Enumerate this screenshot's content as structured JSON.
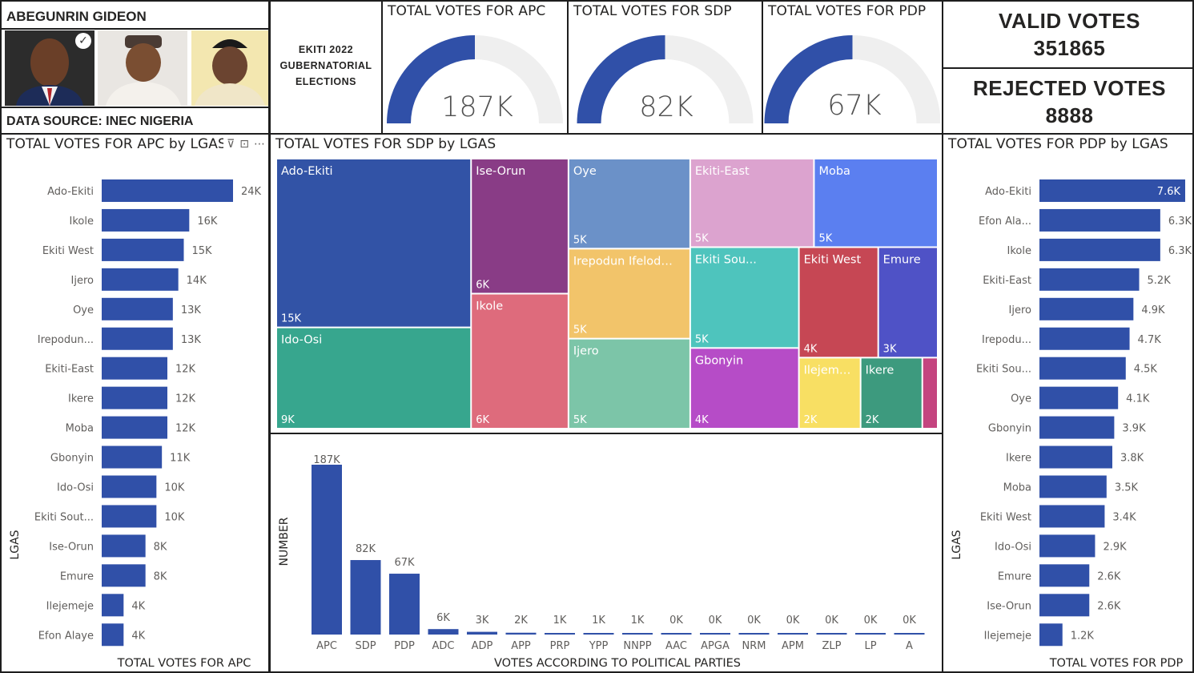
{
  "candidate": {
    "name": "ABEGUNRIN GIDEON",
    "source": "DATA SOURCE: INEC NIGERIA",
    "check": "✓"
  },
  "election_title": [
    "EKITI 2022",
    "GUBERNATORIAL",
    "ELECTIONS"
  ],
  "gauges": [
    {
      "title": "TOTAL VOTES FOR APC",
      "value_label": "187K",
      "value": 187,
      "max": 374
    },
    {
      "title": "TOTAL VOTES FOR SDP",
      "value_label": "82K",
      "value": 82,
      "max": 164
    },
    {
      "title": "TOTAL VOTES FOR PDP",
      "value_label": "67K",
      "value": 67,
      "max": 134
    }
  ],
  "valid_votes": {
    "label": "VALID VOTES",
    "value": "351865"
  },
  "rejected_votes": {
    "label": "REJECTED VOTES",
    "value": "8888"
  },
  "colors": {
    "bar": "#3050a8",
    "gauge_track": "#efefef",
    "text": "#252423",
    "label": "#605e5c"
  },
  "header_icons": [
    "filter-icon",
    "focus-mode-icon",
    "more-options-icon"
  ],
  "header_icon_glyphs": {
    "filter": "⊽",
    "focus": "⊡",
    "more": "⋯"
  },
  "chart_data": [
    {
      "type": "bar",
      "orientation": "horizontal",
      "title": "TOTAL VOTES FOR APC by LGAS",
      "ylabel": "LGAS",
      "xlabel": "TOTAL VOTES FOR APC",
      "categories": [
        "Ado-Ekiti",
        "Ikole",
        "Ekiti West",
        "Ijero",
        "Oye",
        "Irepodun...",
        "Ekiti-East",
        "Ikere",
        "Moba",
        "Gbonyin",
        "Ido-Osi",
        "Ekiti Sout...",
        "Ise-Orun",
        "Emure",
        "Ilejemeje",
        "Efon Alaye"
      ],
      "values": [
        24000,
        16000,
        15000,
        14000,
        13000,
        13000,
        12000,
        12000,
        12000,
        11000,
        10000,
        10000,
        8000,
        8000,
        4000,
        4000
      ],
      "labels": [
        "24K",
        "16K",
        "15K",
        "14K",
        "13K",
        "13K",
        "12K",
        "12K",
        "12K",
        "11K",
        "10K",
        "10K",
        "8K",
        "8K",
        "4K",
        "4K"
      ]
    },
    {
      "type": "treemap",
      "title": "TOTAL VOTES FOR SDP by LGAS",
      "items": [
        {
          "name": "Ado-Ekiti",
          "label": "15K",
          "value": 15000,
          "color": "#3253a6"
        },
        {
          "name": "Ido-Osi",
          "label": "9K",
          "value": 9000,
          "color": "#37a68e"
        },
        {
          "name": "Ise-Orun",
          "label": "6K",
          "value": 6000,
          "color": "#893c86"
        },
        {
          "name": "Ikole",
          "label": "6K",
          "value": 6000,
          "color": "#de6b7c"
        },
        {
          "name": "Oye",
          "label": "5K",
          "value": 5000,
          "color": "#6b91c8"
        },
        {
          "name": "Irepodun Ifelodun",
          "label": "5K",
          "value": 5000,
          "color": "#f2c46a"
        },
        {
          "name": "Ijero",
          "label": "5K",
          "value": 5000,
          "color": "#7cc5a8"
        },
        {
          "name": "Ekiti-East",
          "label": "5K",
          "value": 5000,
          "color": "#dca3cf"
        },
        {
          "name": "Moba",
          "label": "5K",
          "value": 5000,
          "color": "#5b7ff0"
        },
        {
          "name": "Ekiti Sou...",
          "label": "5K",
          "value": 5000,
          "color": "#4ec4bd"
        },
        {
          "name": "Gbonyin",
          "label": "4K",
          "value": 4000,
          "color": "#b64cc7"
        },
        {
          "name": "Ekiti West",
          "label": "4K",
          "value": 4000,
          "color": "#c64754"
        },
        {
          "name": "Ilejemeje",
          "label": "2K",
          "value": 2000,
          "color": "#f8df63"
        },
        {
          "name": "Emure",
          "label": "3K",
          "value": 3000,
          "color": "#4f52c6"
        },
        {
          "name": "Ikere",
          "label": "2K",
          "value": 2000,
          "color": "#3d9a7e"
        },
        {
          "name": "",
          "label": "",
          "value": 500,
          "color": "#c4447f"
        }
      ]
    },
    {
      "type": "bar",
      "orientation": "vertical",
      "title": "",
      "xlabel": "VOTES ACCORDING TO POLITICAL PARTIES",
      "ylabel": "NUMBER",
      "categories": [
        "APC",
        "SDP",
        "PDP",
        "ADC",
        "ADP",
        "APP",
        "PRP",
        "YPP",
        "NNPP",
        "AAC",
        "APGA",
        "NRM",
        "APM",
        "ZLP",
        "LP",
        "A"
      ],
      "values": [
        187000,
        82000,
        67000,
        6000,
        3000,
        2000,
        1000,
        1000,
        1000,
        0,
        0,
        0,
        0,
        0,
        0,
        0
      ],
      "labels": [
        "187K",
        "82K",
        "67K",
        "6K",
        "3K",
        "2K",
        "1K",
        "1K",
        "1K",
        "0K",
        "0K",
        "0K",
        "0K",
        "0K",
        "0K",
        "0K"
      ]
    },
    {
      "type": "bar",
      "orientation": "horizontal",
      "title": "TOTAL VOTES FOR PDP by LGAS",
      "ylabel": "LGAS",
      "xlabel": "TOTAL VOTES FOR PDP",
      "categories": [
        "Ado-Ekiti",
        "Efon Ala...",
        "Ikole",
        "Ekiti-East",
        "Ijero",
        "Irepodu...",
        "Ekiti Sou...",
        "Oye",
        "Gbonyin",
        "Ikere",
        "Moba",
        "Ekiti West",
        "Ido-Osi",
        "Emure",
        "Ise-Orun",
        "Ilejemeje"
      ],
      "values": [
        7600,
        6300,
        6300,
        5200,
        4900,
        4700,
        4500,
        4100,
        3900,
        3800,
        3500,
        3400,
        2900,
        2600,
        2600,
        1200
      ],
      "labels": [
        "7.6K",
        "6.3K",
        "6.3K",
        "5.2K",
        "4.9K",
        "4.7K",
        "4.5K",
        "4.1K",
        "3.9K",
        "3.8K",
        "3.5K",
        "3.4K",
        "2.9K",
        "2.6K",
        "2.6K",
        "1.2K"
      ]
    }
  ]
}
